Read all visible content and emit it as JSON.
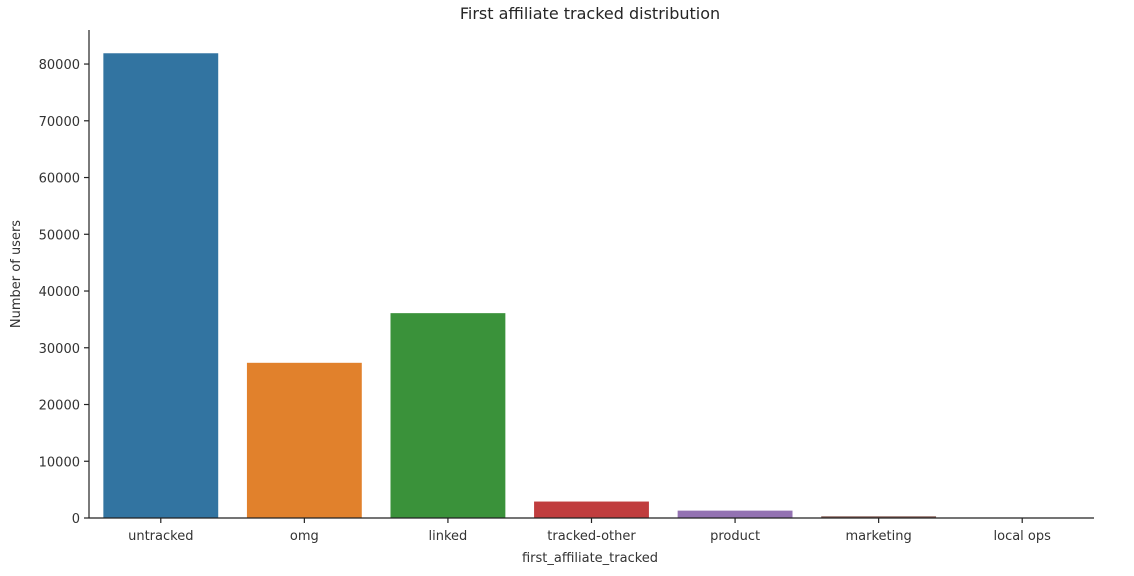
{
  "chart_data": {
    "type": "bar",
    "title": "First affiliate tracked distribution",
    "xlabel": "first_affiliate_tracked",
    "ylabel": "Number of users",
    "categories": [
      "untracked",
      "omg",
      "linked",
      "tracked-other",
      "product",
      "marketing",
      "local ops"
    ],
    "values": [
      81900,
      27350,
      36100,
      2900,
      1300,
      300,
      20
    ],
    "colors": [
      "#3274a1",
      "#e1812c",
      "#3a923a",
      "#c03d3e",
      "#9372b2",
      "#845b53",
      "#d684bd"
    ],
    "ylim": [
      0,
      86000
    ],
    "yticks": [
      0,
      10000,
      20000,
      30000,
      40000,
      50000,
      60000,
      70000,
      80000
    ],
    "grid": false,
    "legend": "none"
  }
}
